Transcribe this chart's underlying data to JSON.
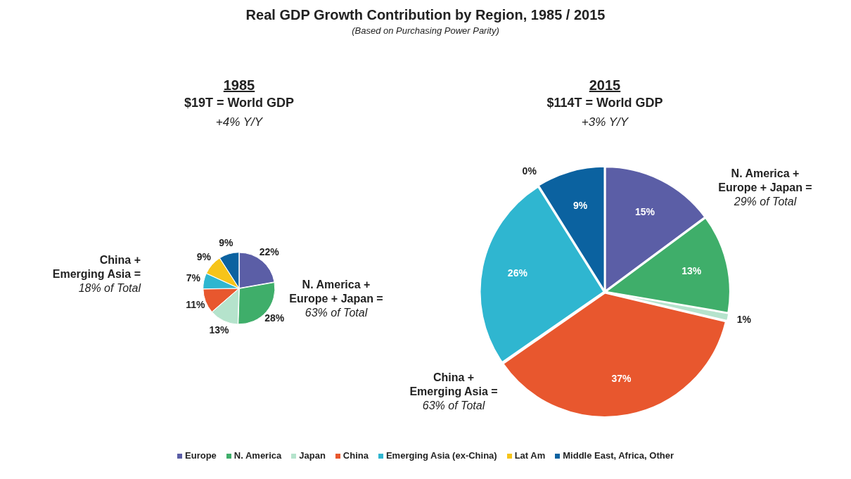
{
  "chart_data": [
    {
      "type": "other",
      "title": "Real GDP Growth Contribution by Region, 1985 / 2015",
      "subtitle": "(Based on Purchasing Power Parity)"
    },
    {
      "type": "pie",
      "title": "1985",
      "subtitle": "$19T = World GDP",
      "annotations": [
        "+4% Y/Y",
        "China +\nEmerging Asia =\n18% of Total",
        "N. America +\nEurope + Japan =\n63% of Total"
      ],
      "categories": [
        "Europe",
        "N. America",
        "Japan",
        "China",
        "Emerging Asia (ex-China)",
        "Lat Am",
        "Middle East, Africa, Other"
      ],
      "values": [
        22,
        28,
        13,
        11,
        7,
        9,
        9
      ],
      "colors": [
        "#5b5ea6",
        "#3fae6a",
        "#b5e3cc",
        "#e8572e",
        "#2fb6d0",
        "#f6c41a",
        "#0b62a0"
      ],
      "value_labels": [
        "22%",
        "28%",
        "13%",
        "11%",
        "7%",
        "9%",
        "9%"
      ],
      "legend": "bottom"
    },
    {
      "type": "pie",
      "title": "2015",
      "subtitle": "$114T = World GDP",
      "annotations": [
        "+3% Y/Y",
        "N. America +\nEurope + Japan =\n29% of Total",
        "China +\nEmerging Asia =\n63% of Total"
      ],
      "categories": [
        null,
        null,
        null,
        null,
        null,
        null,
        null
      ],
      "values": [
        15,
        13,
        1,
        37,
        26,
        0,
        9
      ],
      "colors": [
        "#5b5ea6",
        "#3fae6a",
        "#b5e3cc",
        "#e8572e",
        "#2fb6d0",
        "#f6c41a",
        "#0b62a0"
      ],
      "value_labels": [
        "15%",
        "13%",
        "1%",
        "37%",
        "26%",
        "0%",
        "9%"
      ]
    }
  ]
}
